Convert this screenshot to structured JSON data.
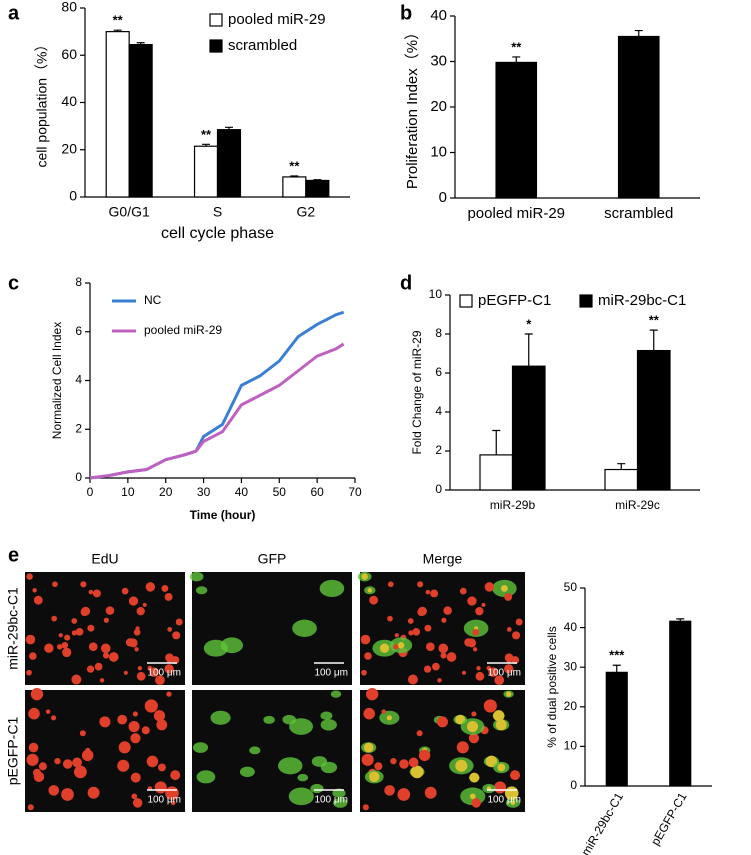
{
  "chart_data": [
    {
      "type": "bar",
      "panel": "a",
      "categories": [
        "G0/G1",
        "S",
        "G2"
      ],
      "series": [
        {
          "name": "pooled miR-29",
          "color": "#ffffff",
          "values": [
            70,
            21.5,
            8.5
          ],
          "errors": [
            0.6,
            0.8,
            0.4
          ],
          "annotations": [
            "**",
            "**",
            "**"
          ]
        },
        {
          "name": "scrambled",
          "color": "#000000",
          "values": [
            64.5,
            28.5,
            7
          ],
          "errors": [
            0.8,
            1,
            0.3
          ]
        }
      ],
      "ylim": [
        0,
        80
      ],
      "yticks": [
        0,
        20,
        40,
        60,
        80
      ],
      "ylabel": "cell population（%）",
      "xlabel": "cell cycle phase",
      "legend": "upper right"
    },
    {
      "type": "bar",
      "panel": "b",
      "categories": [
        "pooled miR-29",
        "scrambled"
      ],
      "values": [
        29.8,
        35.5
      ],
      "errors": [
        1.2,
        1.3
      ],
      "annotations": [
        "**",
        null
      ],
      "color": "#000000",
      "ylim": [
        0,
        40
      ],
      "yticks": [
        0,
        10,
        20,
        30,
        40
      ],
      "ylabel": "Proliferation Index（%）"
    },
    {
      "type": "line",
      "panel": "c",
      "x": [
        0,
        5,
        10,
        15,
        20,
        25,
        28,
        30,
        35,
        40,
        45,
        50,
        55,
        60,
        65,
        67
      ],
      "series": [
        {
          "name": "NC",
          "color": "#3a7fd5",
          "values": [
            0,
            0.1,
            0.25,
            0.35,
            0.75,
            0.95,
            1.1,
            1.7,
            2.2,
            3.8,
            4.2,
            4.8,
            5.8,
            6.3,
            6.7,
            6.8
          ]
        },
        {
          "name": "pooled miR-29",
          "color": "#c060c0",
          "values": [
            0,
            0.1,
            0.25,
            0.35,
            0.75,
            0.95,
            1.1,
            1.5,
            1.9,
            3.0,
            3.4,
            3.8,
            4.4,
            5.0,
            5.3,
            5.5
          ]
        }
      ],
      "xlim": [
        0,
        70
      ],
      "xticks": [
        0,
        10,
        20,
        30,
        40,
        50,
        60,
        70
      ],
      "ylim": [
        0,
        8
      ],
      "yticks": [
        0,
        2,
        4,
        6,
        8
      ],
      "xlabel": "Time (hour)",
      "ylabel": "Normalized Cell Index",
      "legend": "upper left"
    },
    {
      "type": "bar",
      "panel": "d",
      "categories": [
        "miR-29b",
        "miR-29c"
      ],
      "series": [
        {
          "name": "pEGFP-C1",
          "color": "#ffffff",
          "values": [
            1.8,
            1.05
          ],
          "errors": [
            1.25,
            0.3
          ]
        },
        {
          "name": "miR-29bc-C1",
          "color": "#000000",
          "values": [
            6.35,
            7.15
          ],
          "errors": [
            1.65,
            1.05
          ],
          "annotations": [
            "*",
            "**"
          ]
        }
      ],
      "ylim": [
        0,
        10
      ],
      "yticks": [
        0,
        2,
        4,
        6,
        8,
        10
      ],
      "ylabel": "Fold Change of miR-29",
      "legend": "upper left"
    },
    {
      "type": "bar",
      "categories": [
        "miR-29bc-C1",
        "pEGFP-C1"
      ],
      "values": [
        28.7,
        41.6
      ],
      "errors": [
        1.8,
        0.6
      ],
      "annotations": [
        "***",
        null
      ],
      "color": "#000000",
      "ylim": [
        0,
        50
      ],
      "yticks": [
        0,
        10,
        20,
        30,
        40,
        50
      ],
      "ylabel": "% of dual positive cells"
    }
  ],
  "micrographs": {
    "panel": "e",
    "columns": [
      "EdU",
      "GFP",
      "Merge"
    ],
    "rows": [
      "miR-29bc-C1",
      "pEGFP-C1"
    ],
    "scale_bar": "100 μm"
  }
}
